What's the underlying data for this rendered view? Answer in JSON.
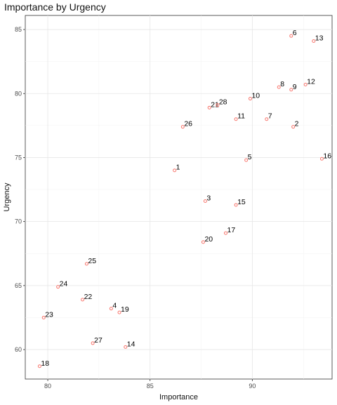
{
  "chart_data": {
    "type": "scatter",
    "title": "Importance by Urgency",
    "xlabel": "Importance",
    "ylabel": "Urgency",
    "xlim": [
      78.9,
      93.9
    ],
    "ylim": [
      57.7,
      86.1
    ],
    "x_ticks": [
      80,
      85,
      90
    ],
    "y_ticks": [
      60,
      65,
      70,
      75,
      80,
      85
    ],
    "grid": true,
    "point_color": "#f8766d",
    "points": [
      {
        "label": "1",
        "x": 86.2,
        "y": 74.0
      },
      {
        "label": "2",
        "x": 92.0,
        "y": 77.4
      },
      {
        "label": "3",
        "x": 87.7,
        "y": 71.6
      },
      {
        "label": "4",
        "x": 83.1,
        "y": 63.2
      },
      {
        "label": "5",
        "x": 89.7,
        "y": 74.8
      },
      {
        "label": "6",
        "x": 91.9,
        "y": 84.5
      },
      {
        "label": "7",
        "x": 90.7,
        "y": 78.0
      },
      {
        "label": "8",
        "x": 91.3,
        "y": 80.5
      },
      {
        "label": "9",
        "x": 91.9,
        "y": 80.3
      },
      {
        "label": "10",
        "x": 89.9,
        "y": 79.6
      },
      {
        "label": "11",
        "x": 89.2,
        "y": 78.0
      },
      {
        "label": "12",
        "x": 92.6,
        "y": 80.7
      },
      {
        "label": "13",
        "x": 93.0,
        "y": 84.1
      },
      {
        "label": "14",
        "x": 83.8,
        "y": 60.2
      },
      {
        "label": "15",
        "x": 89.2,
        "y": 71.3
      },
      {
        "label": "16",
        "x": 93.4,
        "y": 74.9
      },
      {
        "label": "17",
        "x": 88.7,
        "y": 69.1
      },
      {
        "label": "18",
        "x": 79.6,
        "y": 58.7
      },
      {
        "label": "19",
        "x": 83.5,
        "y": 62.9
      },
      {
        "label": "20",
        "x": 87.6,
        "y": 68.4
      },
      {
        "label": "21",
        "x": 87.9,
        "y": 78.9
      },
      {
        "label": "22",
        "x": 81.7,
        "y": 63.9
      },
      {
        "label": "23",
        "x": 79.8,
        "y": 62.5
      },
      {
        "label": "24",
        "x": 80.5,
        "y": 64.9
      },
      {
        "label": "25",
        "x": 81.9,
        "y": 66.7
      },
      {
        "label": "26",
        "x": 86.6,
        "y": 77.4
      },
      {
        "label": "27",
        "x": 82.2,
        "y": 60.5
      },
      {
        "label": "28",
        "x": 88.3,
        "y": 79.1
      }
    ]
  }
}
